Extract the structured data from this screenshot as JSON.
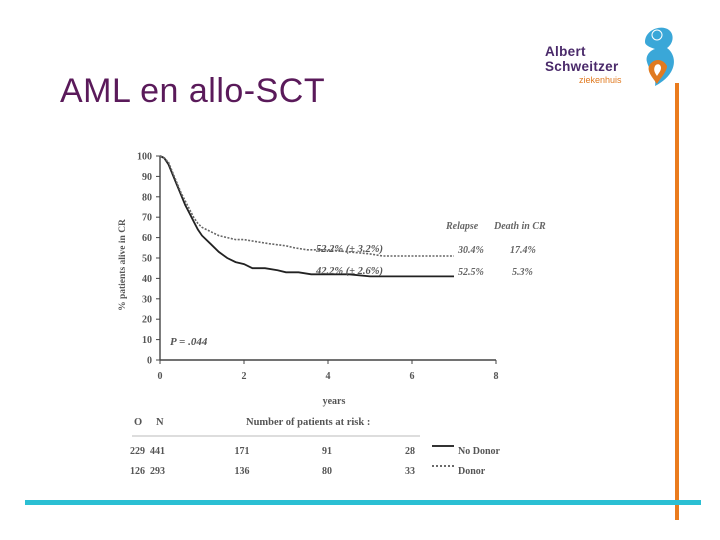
{
  "slide": {
    "title": "AML en allo-SCT"
  },
  "logo": {
    "line1": "Albert",
    "line2": "Schweitzer",
    "line3": "ziekenhuis",
    "colors": {
      "text": "#4a2a6a",
      "accent": "#e07a20",
      "mark_blue": "#3aa7d8"
    }
  },
  "colors": {
    "title": "#5a1a5a",
    "vertical_rule": "#ea7b1d",
    "horizontal_rule": "#2bbfd3"
  },
  "chart_data": {
    "type": "line",
    "ylabel": "% patients alive in CR",
    "xlabel": "years",
    "xlim": [
      0,
      8
    ],
    "ylim": [
      0,
      100
    ],
    "x_ticks": [
      "0",
      "2",
      "4",
      "6",
      "8"
    ],
    "y_ticks": [
      "0",
      "10",
      "20",
      "30",
      "40",
      "50",
      "60",
      "70",
      "80",
      "90",
      "100"
    ],
    "grid": false,
    "p_value": "P = .044",
    "series": [
      {
        "name": "No Donor",
        "style": "solid",
        "points": [
          [
            0,
            100
          ],
          [
            0.1,
            99
          ],
          [
            0.2,
            96
          ],
          [
            0.3,
            91
          ],
          [
            0.4,
            86
          ],
          [
            0.5,
            81
          ],
          [
            0.6,
            76
          ],
          [
            0.7,
            72
          ],
          [
            0.8,
            68
          ],
          [
            0.9,
            64
          ],
          [
            1.0,
            61
          ],
          [
            1.2,
            57
          ],
          [
            1.4,
            53
          ],
          [
            1.6,
            50
          ],
          [
            1.8,
            48
          ],
          [
            2.0,
            47
          ],
          [
            2.2,
            45
          ],
          [
            2.5,
            45
          ],
          [
            2.8,
            44
          ],
          [
            3.0,
            43
          ],
          [
            3.3,
            43
          ],
          [
            3.6,
            42
          ],
          [
            4.0,
            42
          ],
          [
            4.5,
            42
          ],
          [
            5.0,
            41
          ],
          [
            6.0,
            41
          ],
          [
            7.0,
            41
          ]
        ],
        "label": "42.2% (± 2.6%)",
        "relapse": "52.5%",
        "death_in_cr": "5.3%"
      },
      {
        "name": "Donor",
        "style": "dotted",
        "points": [
          [
            0,
            100
          ],
          [
            0.1,
            99
          ],
          [
            0.2,
            97
          ],
          [
            0.3,
            92
          ],
          [
            0.4,
            87
          ],
          [
            0.5,
            82
          ],
          [
            0.6,
            78
          ],
          [
            0.7,
            74
          ],
          [
            0.8,
            70
          ],
          [
            0.9,
            67
          ],
          [
            1.0,
            65
          ],
          [
            1.2,
            63
          ],
          [
            1.4,
            61
          ],
          [
            1.6,
            60
          ],
          [
            1.8,
            59
          ],
          [
            2.0,
            59
          ],
          [
            2.3,
            58
          ],
          [
            2.6,
            57
          ],
          [
            3.0,
            56
          ],
          [
            3.2,
            55
          ],
          [
            3.5,
            54
          ],
          [
            4.0,
            54
          ],
          [
            4.5,
            53
          ],
          [
            5.0,
            52
          ],
          [
            5.3,
            51
          ],
          [
            6.0,
            51
          ],
          [
            7.0,
            51
          ]
        ],
        "label": "52.2% (± 3.2%)",
        "relapse": "30.4%",
        "death_in_cr": "17.4%"
      }
    ],
    "table_headers": {
      "relapse": "Relapse",
      "death_in_cr": "Death in CR"
    },
    "risk_table": {
      "col_o": "O",
      "col_n": "N",
      "title": "Number of patients at risk :",
      "rows": [
        {
          "o": "229",
          "n": "441",
          "counts": [
            "171",
            "91",
            "28"
          ],
          "legend": "No Donor",
          "style": "solid"
        },
        {
          "o": "126",
          "n": "293",
          "counts": [
            "136",
            "80",
            "33"
          ],
          "legend": "Donor",
          "style": "dotted"
        }
      ]
    }
  }
}
